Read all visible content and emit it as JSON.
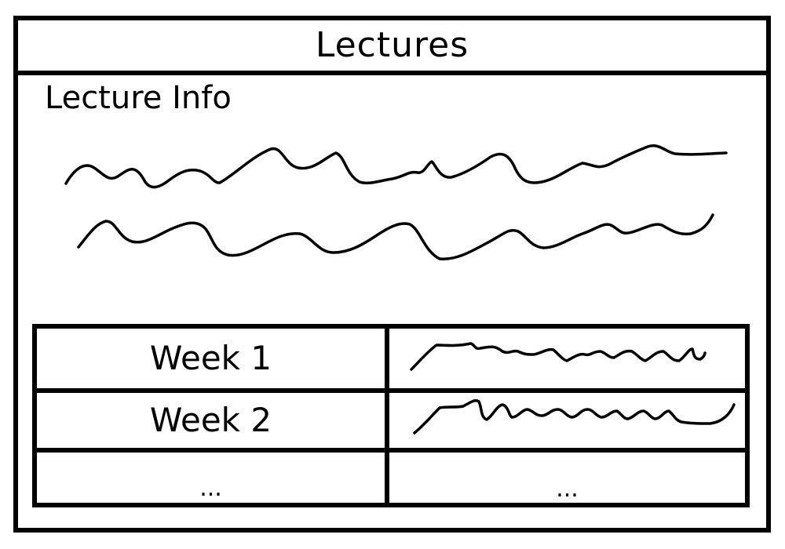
{
  "title": "Lectures",
  "lecture_info": {
    "heading": "Lecture Info"
  },
  "weeks": [
    {
      "label": "Week 1"
    },
    {
      "label": "Week 2"
    },
    {
      "label": "...",
      "detail": "..."
    }
  ]
}
